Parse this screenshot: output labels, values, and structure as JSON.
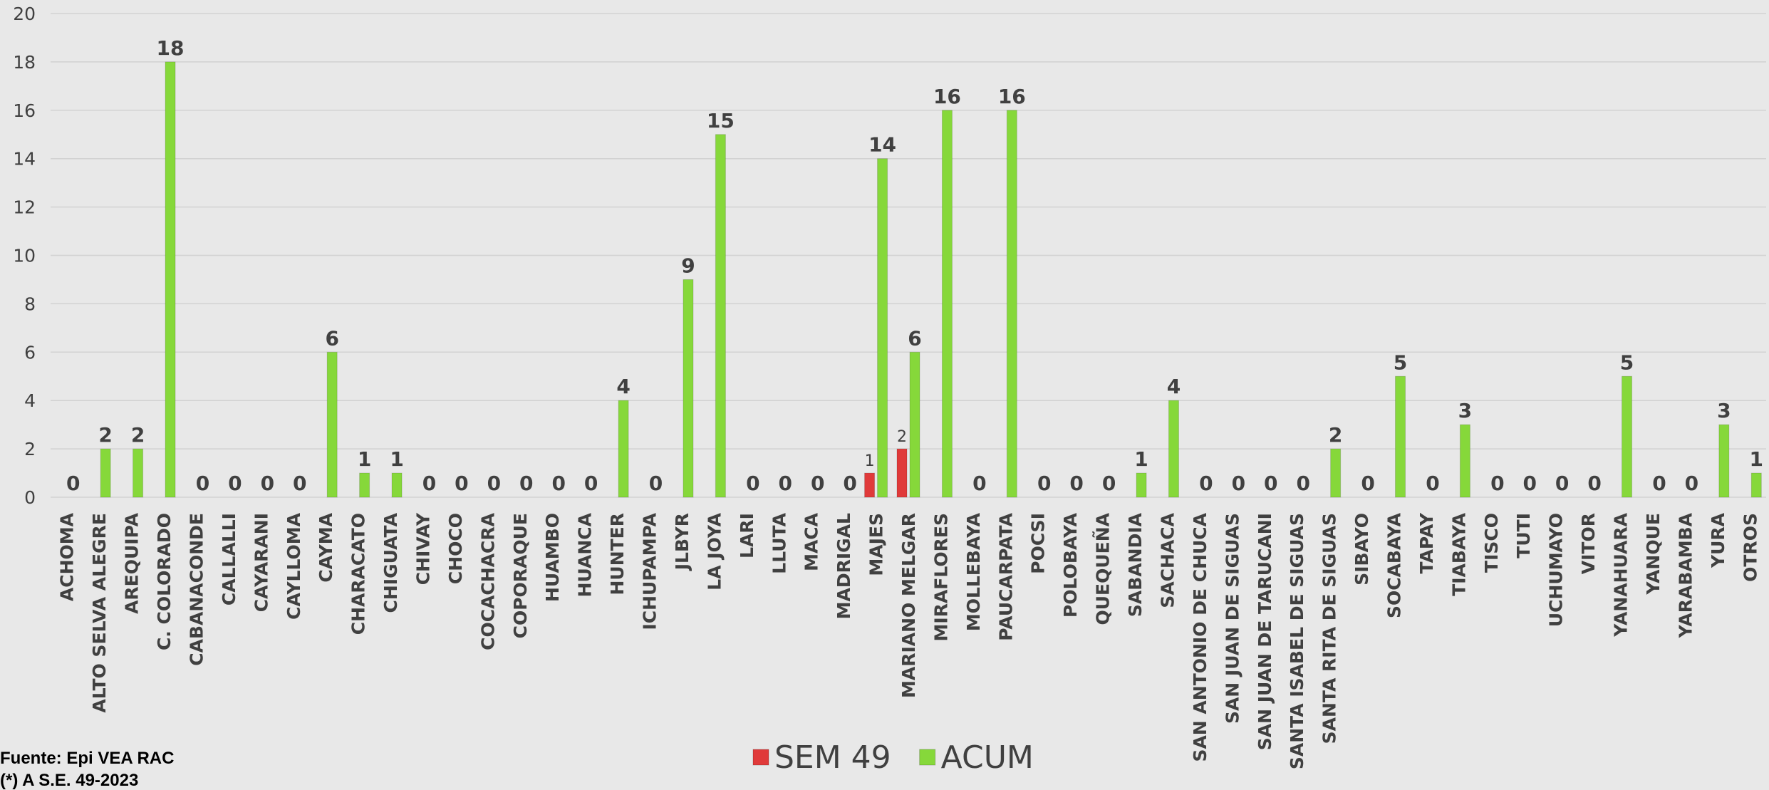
{
  "chart_data": {
    "type": "bar",
    "categories": [
      "ACHOMA",
      "ALTO SELVA ALEGRE",
      "AREQUIPA",
      "C. COLORADO",
      "CABANACONDE",
      "CALLALLI",
      "CAYARANI",
      "CAYLLOMA",
      "CAYMA",
      "CHARACATO",
      "CHIGUATA",
      "CHIVAY",
      "CHOCO",
      "COCACHACRA",
      "COPORAQUE",
      "HUAMBO",
      "HUANCA",
      "HUNTER",
      "ICHUPAMPA",
      "JLBYR",
      "LA JOYA",
      "LARI",
      "LLUTA",
      "MACA",
      "MADRIGAL",
      "MAJES",
      "MARIANO MELGAR",
      "MIRAFLORES",
      "MOLLEBAYA",
      "PAUCARPATA",
      "POCSI",
      "POLOBAYA",
      "QUEQUEÑA",
      "SABANDIA",
      "SACHACA",
      "SAN ANTONIO DE CHUCA",
      "SAN JUAN DE SIGUAS",
      "SAN JUAN DE TARUCANI",
      "SANTA ISABEL DE SIGUAS",
      "SANTA RITA DE SIGUAS",
      "SIBAYO",
      "SOCABAYA",
      "TAPAY",
      "TIABAYA",
      "TISCO",
      "TUTI",
      "UCHUMAYO",
      "VITOR",
      "YANAHUARA",
      "YANQUE",
      "YARABAMBA",
      "YURA",
      "OTROS"
    ],
    "series": [
      {
        "name": "SEM 49",
        "color": "#e03a3a",
        "values": [
          null,
          null,
          null,
          null,
          null,
          null,
          null,
          null,
          null,
          null,
          null,
          null,
          null,
          null,
          null,
          null,
          null,
          null,
          null,
          null,
          null,
          null,
          null,
          null,
          null,
          1,
          2,
          null,
          null,
          null,
          null,
          null,
          null,
          null,
          null,
          null,
          null,
          null,
          null,
          null,
          null,
          null,
          null,
          null,
          null,
          null,
          null,
          null,
          null,
          null,
          null,
          null,
          null
        ]
      },
      {
        "name": "ACUM",
        "color": "#86d83a",
        "values": [
          0,
          2,
          2,
          18,
          0,
          0,
          0,
          0,
          6,
          1,
          1,
          0,
          0,
          0,
          0,
          0,
          0,
          4,
          0,
          9,
          15,
          0,
          0,
          0,
          0,
          14,
          6,
          16,
          0,
          16,
          0,
          0,
          0,
          1,
          4,
          0,
          0,
          0,
          0,
          2,
          0,
          5,
          0,
          3,
          0,
          0,
          0,
          0,
          5,
          0,
          0,
          3,
          1
        ]
      }
    ],
    "ylim": [
      0,
      20
    ],
    "yticks": [
      0,
      2,
      4,
      6,
      8,
      10,
      12,
      14,
      16,
      18,
      20
    ],
    "grid": true,
    "legend": "bottom",
    "source": [
      "Fuente: Epi VEA RAC",
      "(*) A S.E. 49-2023"
    ]
  }
}
